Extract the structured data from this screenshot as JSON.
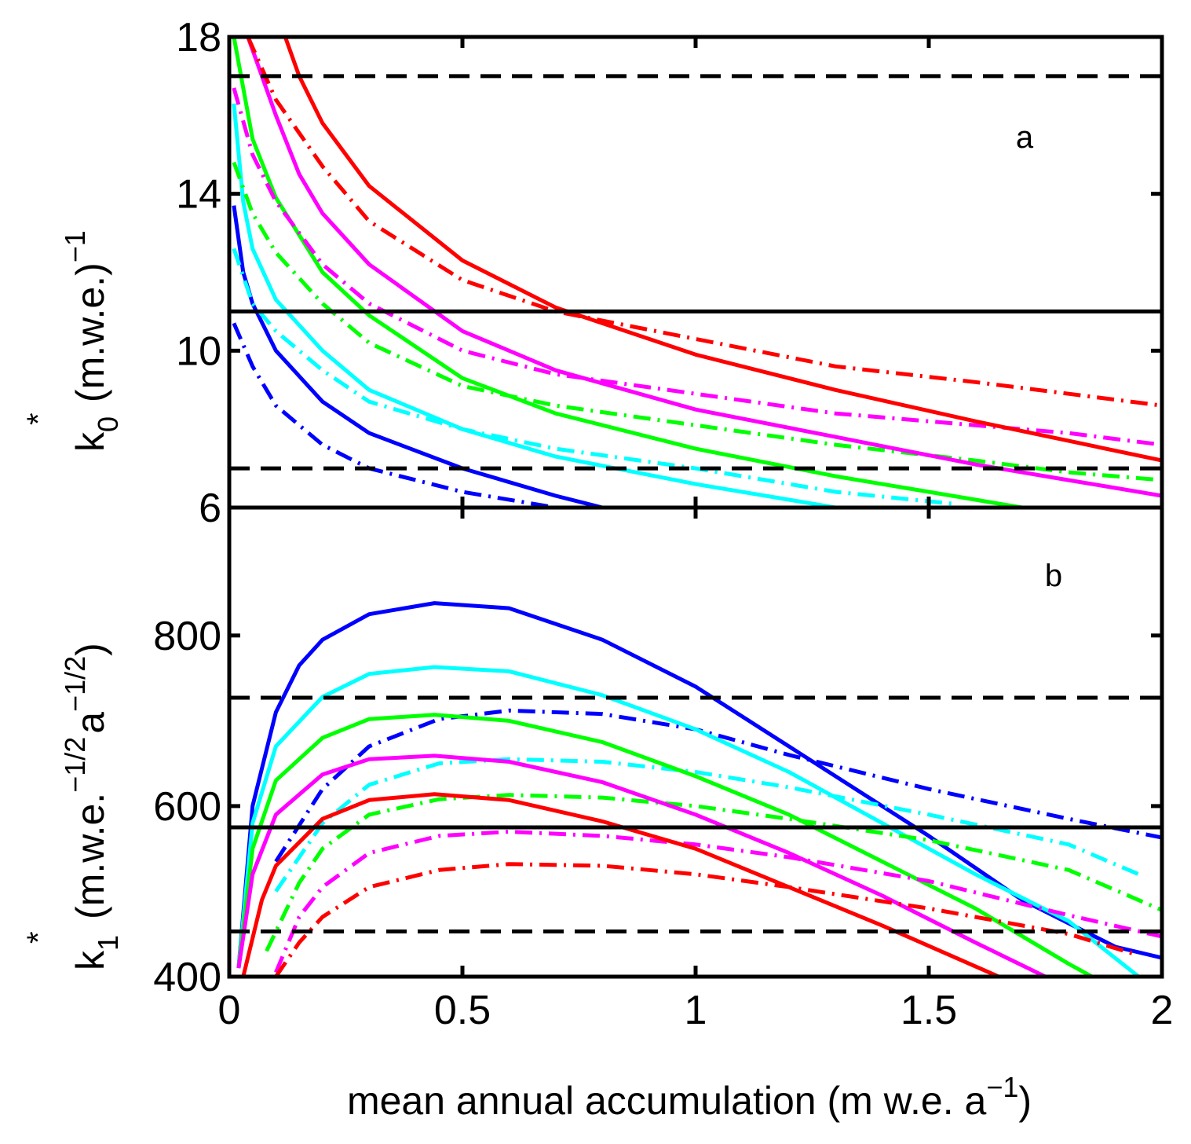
{
  "chart_data": [
    {
      "panel_label": "a",
      "type": "line",
      "xlim": [
        0,
        2
      ],
      "ylim": [
        6,
        18
      ],
      "xticks": [
        0,
        0.5,
        1,
        1.5,
        2
      ],
      "yticks": [
        6,
        10,
        14,
        18
      ],
      "ytick_labels": [
        "6",
        "10",
        "14",
        "18"
      ],
      "ylabel": {
        "base": "k",
        "sup": "*",
        "sub": "0",
        "units": "(m.w.e.)",
        "units_sup": "−1"
      },
      "reference_lines": [
        {
          "y": 17,
          "style": "dashed",
          "color": "#000000"
        },
        {
          "y": 11,
          "style": "solid",
          "color": "#000000"
        },
        {
          "y": 7,
          "style": "dashed",
          "color": "#000000"
        }
      ],
      "series": [
        {
          "color": "#0000ff",
          "style": "solid",
          "x": [
            0.01,
            0.03,
            0.05,
            0.1,
            0.2,
            0.3,
            0.5,
            0.7,
            0.8
          ],
          "y": [
            13.7,
            12.0,
            11.2,
            10.0,
            8.7,
            7.9,
            7.0,
            6.3,
            6.0
          ]
        },
        {
          "color": "#0000ff",
          "style": "dashdot",
          "x": [
            0.01,
            0.05,
            0.1,
            0.2,
            0.3,
            0.5,
            0.7
          ],
          "y": [
            10.7,
            9.6,
            8.6,
            7.6,
            7.0,
            6.4,
            6.0
          ]
        },
        {
          "color": "#00ffff",
          "style": "solid",
          "x": [
            0.01,
            0.03,
            0.05,
            0.1,
            0.2,
            0.3,
            0.5,
            0.7,
            1.0,
            1.2,
            1.3
          ],
          "y": [
            16.3,
            13.8,
            12.6,
            11.3,
            10.0,
            9.0,
            8.0,
            7.3,
            6.6,
            6.2,
            6.0
          ]
        },
        {
          "color": "#00ffff",
          "style": "dashdot",
          "x": [
            0.01,
            0.05,
            0.1,
            0.2,
            0.3,
            0.5,
            0.7,
            1.0,
            1.3,
            1.55
          ],
          "y": [
            12.6,
            11.2,
            10.5,
            9.5,
            8.7,
            8.0,
            7.5,
            7.0,
            6.4,
            6.1
          ]
        },
        {
          "color": "#00ff00",
          "style": "solid",
          "x": [
            0.01,
            0.05,
            0.1,
            0.2,
            0.3,
            0.5,
            0.7,
            1.0,
            1.3,
            1.6,
            1.7
          ],
          "y": [
            18.0,
            15.4,
            13.9,
            12.0,
            10.9,
            9.3,
            8.4,
            7.5,
            6.8,
            6.2,
            6.0
          ]
        },
        {
          "color": "#00ff00",
          "style": "dashdot",
          "x": [
            0.01,
            0.05,
            0.1,
            0.2,
            0.3,
            0.5,
            0.7,
            1.0,
            1.3,
            1.6,
            1.8,
            2.0
          ],
          "y": [
            14.8,
            13.5,
            12.5,
            11.2,
            10.2,
            9.1,
            8.6,
            8.1,
            7.6,
            7.2,
            6.9,
            6.7
          ]
        },
        {
          "color": "#ff00ff",
          "style": "solid",
          "x": [
            0.04,
            0.1,
            0.15,
            0.2,
            0.3,
            0.5,
            0.7,
            1.0,
            1.3,
            1.6,
            1.8,
            2.0
          ],
          "y": [
            18.0,
            16.0,
            14.5,
            13.5,
            12.2,
            10.5,
            9.5,
            8.5,
            7.8,
            7.1,
            6.7,
            6.3
          ]
        },
        {
          "color": "#ff00ff",
          "style": "dashdot",
          "x": [
            0.01,
            0.05,
            0.1,
            0.2,
            0.3,
            0.5,
            0.7,
            1.0,
            1.3,
            1.6,
            1.8,
            2.0
          ],
          "y": [
            16.7,
            15.0,
            13.8,
            12.2,
            11.2,
            10.0,
            9.4,
            8.9,
            8.4,
            8.1,
            7.9,
            7.6
          ]
        },
        {
          "color": "#ff0000",
          "style": "solid",
          "x": [
            0.12,
            0.15,
            0.2,
            0.3,
            0.5,
            0.7,
            1.0,
            1.3,
            1.6,
            1.8,
            2.0
          ],
          "y": [
            18.0,
            17.0,
            15.8,
            14.2,
            12.3,
            11.1,
            9.9,
            9.0,
            8.2,
            7.7,
            7.2
          ]
        },
        {
          "color": "#ff0000",
          "style": "dashdot",
          "x": [
            0.04,
            0.1,
            0.2,
            0.3,
            0.5,
            0.7,
            1.0,
            1.3,
            1.6,
            1.8,
            2.0
          ],
          "y": [
            18.0,
            16.4,
            14.7,
            13.3,
            11.8,
            11.0,
            10.3,
            9.6,
            9.2,
            8.9,
            8.6
          ]
        }
      ]
    },
    {
      "panel_label": "b",
      "type": "line",
      "xlim": [
        0,
        2
      ],
      "ylim": [
        400,
        950
      ],
      "xticks": [
        0,
        0.5,
        1,
        1.5,
        2
      ],
      "xtick_labels": [
        "0",
        "0.5",
        "1",
        "1.5",
        "2"
      ],
      "yticks": [
        400,
        600,
        800
      ],
      "ytick_labels": [
        "400",
        "600",
        "800"
      ],
      "xlabel": {
        "text": "mean annual accumulation (m w.e. a",
        "sup": "−1",
        "close": ")"
      },
      "ylabel": {
        "base": "k",
        "sup": "*",
        "sub": "1",
        "units": "(m.w.e.",
        "units_sup1": "−1/2",
        "units_mid": "a",
        "units_sup2": "−1/2",
        "close": ")"
      },
      "reference_lines": [
        {
          "y": 727,
          "style": "dashed",
          "color": "#000000"
        },
        {
          "y": 575,
          "style": "solid",
          "color": "#000000"
        },
        {
          "y": 453,
          "style": "dashed",
          "color": "#000000"
        }
      ],
      "series": [
        {
          "color": "#0000ff",
          "style": "solid",
          "x": [
            0.02,
            0.05,
            0.1,
            0.15,
            0.2,
            0.3,
            0.44,
            0.6,
            0.8,
            1.0,
            1.2,
            1.5,
            1.7,
            1.9,
            2.0
          ],
          "y": [
            410,
            600,
            710,
            765,
            795,
            825,
            838,
            832,
            795,
            740,
            670,
            565,
            490,
            435,
            422
          ]
        },
        {
          "color": "#0000ff",
          "style": "dashdot",
          "x": [
            0.1,
            0.2,
            0.3,
            0.45,
            0.6,
            0.8,
            1.0,
            1.2,
            1.5,
            1.8,
            2.0
          ],
          "y": [
            535,
            620,
            670,
            702,
            712,
            708,
            690,
            660,
            620,
            585,
            563
          ]
        },
        {
          "color": "#00ffff",
          "style": "solid",
          "x": [
            0.02,
            0.05,
            0.1,
            0.2,
            0.3,
            0.44,
            0.6,
            0.8,
            1.0,
            1.2,
            1.4,
            1.6,
            1.8,
            1.95
          ],
          "y": [
            410,
            580,
            670,
            728,
            755,
            763,
            758,
            730,
            690,
            640,
            580,
            520,
            465,
            400
          ]
        },
        {
          "color": "#00ffff",
          "style": "dashdot",
          "x": [
            0.1,
            0.2,
            0.3,
            0.45,
            0.6,
            0.8,
            1.0,
            1.2,
            1.5,
            1.8,
            1.95
          ],
          "y": [
            500,
            580,
            625,
            650,
            655,
            652,
            640,
            622,
            590,
            555,
            520
          ]
        },
        {
          "color": "#00ff00",
          "style": "solid",
          "x": [
            0.02,
            0.05,
            0.1,
            0.2,
            0.3,
            0.44,
            0.6,
            0.8,
            1.0,
            1.2,
            1.4,
            1.6,
            1.8,
            1.85
          ],
          "y": [
            410,
            550,
            630,
            680,
            702,
            707,
            700,
            675,
            635,
            590,
            535,
            480,
            415,
            400
          ]
        },
        {
          "color": "#00ff00",
          "style": "dashdot",
          "x": [
            0.08,
            0.15,
            0.2,
            0.3,
            0.45,
            0.6,
            0.8,
            1.0,
            1.2,
            1.5,
            1.8,
            2.0
          ],
          "y": [
            430,
            510,
            550,
            590,
            608,
            613,
            610,
            600,
            585,
            560,
            525,
            478
          ]
        },
        {
          "color": "#ff00ff",
          "style": "solid",
          "x": [
            0.02,
            0.05,
            0.1,
            0.2,
            0.3,
            0.44,
            0.6,
            0.8,
            1.0,
            1.2,
            1.4,
            1.6,
            1.75
          ],
          "y": [
            410,
            520,
            590,
            637,
            655,
            659,
            652,
            628,
            590,
            545,
            495,
            440,
            400
          ]
        },
        {
          "color": "#ff00ff",
          "style": "dashdot",
          "x": [
            0.1,
            0.15,
            0.2,
            0.3,
            0.45,
            0.6,
            0.8,
            1.0,
            1.2,
            1.5,
            1.8,
            2.0
          ],
          "y": [
            405,
            470,
            505,
            545,
            565,
            570,
            565,
            555,
            540,
            512,
            472,
            447
          ]
        },
        {
          "color": "#ff0000",
          "style": "solid",
          "x": [
            0.03,
            0.07,
            0.1,
            0.2,
            0.3,
            0.44,
            0.6,
            0.8,
            1.0,
            1.2,
            1.4,
            1.65
          ],
          "y": [
            400,
            490,
            530,
            585,
            607,
            614,
            607,
            582,
            550,
            505,
            460,
            400
          ]
        },
        {
          "color": "#ff0000",
          "style": "dashdot",
          "x": [
            0.1,
            0.15,
            0.2,
            0.3,
            0.45,
            0.6,
            0.8,
            1.0,
            1.2,
            1.5,
            1.8,
            1.95
          ],
          "y": [
            400,
            440,
            470,
            505,
            525,
            532,
            530,
            520,
            505,
            480,
            450,
            425
          ]
        }
      ]
    }
  ]
}
